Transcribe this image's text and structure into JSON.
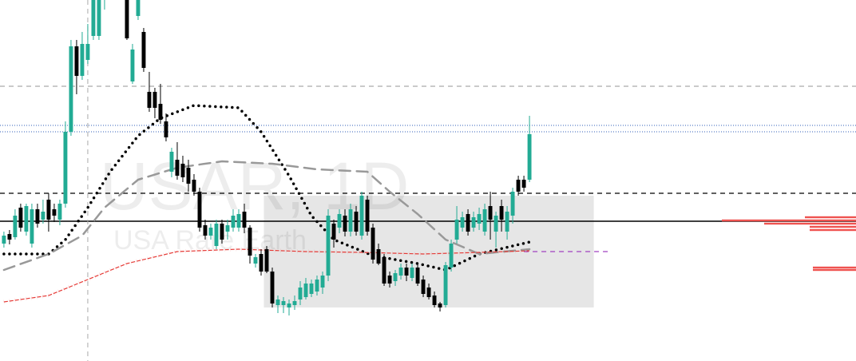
{
  "chart_data": {
    "type": "candlestick",
    "title": "USAR, 1D",
    "subtitle": "USA Rare Earth",
    "ylim": [
      0,
      452
    ],
    "xlim": [
      -0.7,
      152.4
    ],
    "up_color": "#22ab94",
    "down_color": "#000000",
    "ohlc": [
      [
        147,
        162,
        142,
        157
      ],
      [
        159,
        164,
        146,
        152
      ],
      [
        155,
        190,
        152,
        182
      ],
      [
        192,
        197,
        162,
        167
      ],
      [
        162,
        197,
        157,
        194
      ],
      [
        147,
        197,
        142,
        190
      ],
      [
        190,
        197,
        167,
        172
      ],
      [
        177,
        202,
        172,
        187
      ],
      [
        202,
        210,
        162,
        177
      ],
      [
        190,
        197,
        174,
        182
      ],
      [
        177,
        202,
        170,
        197
      ],
      [
        197,
        300,
        192,
        287
      ],
      [
        287,
        402,
        282,
        394
      ],
      [
        394,
        402,
        334,
        357
      ],
      [
        357,
        412,
        352,
        397
      ],
      [
        377,
        422,
        372,
        397
      ],
      [
        407,
        480,
        402,
        470
      ],
      [
        407,
        480,
        402,
        465
      ],
      [
        460,
        500,
        440,
        490
      ],
      [
        490,
        510,
        470,
        480
      ],
      [
        480,
        500,
        455,
        470
      ],
      [
        470,
        490,
        455,
        465
      ],
      [
        470,
        480,
        402,
        404
      ],
      [
        350,
        397,
        347,
        390
      ],
      [
        432,
        480,
        427,
        470
      ],
      [
        412,
        417,
        362,
        367
      ],
      [
        337,
        362,
        312,
        317
      ],
      [
        337,
        342,
        304,
        317
      ],
      [
        322,
        347,
        297,
        302
      ],
      [
        300,
        310,
        275,
        280
      ],
      [
        237,
        267,
        230,
        262
      ],
      [
        252,
        274,
        227,
        232
      ],
      [
        247,
        257,
        224,
        230
      ],
      [
        242,
        252,
        212,
        222
      ],
      [
        227,
        234,
        207,
        212
      ],
      [
        212,
        217,
        162,
        167
      ],
      [
        170,
        177,
        152,
        157
      ],
      [
        157,
        172,
        152,
        167
      ],
      [
        144,
        177,
        140,
        172
      ],
      [
        172,
        177,
        147,
        152
      ],
      [
        162,
        177,
        152,
        170
      ],
      [
        167,
        190,
        162,
        182
      ],
      [
        167,
        190,
        162,
        184
      ],
      [
        187,
        197,
        160,
        167
      ],
      [
        167,
        170,
        122,
        132
      ],
      [
        122,
        134,
        117,
        130
      ],
      [
        134,
        140,
        107,
        112
      ],
      [
        140,
        144,
        110,
        112
      ],
      [
        112,
        117,
        67,
        72
      ],
      [
        70,
        82,
        60,
        77
      ],
      [
        70,
        80,
        60,
        75
      ],
      [
        67,
        77,
        57,
        72
      ],
      [
        70,
        82,
        64,
        75
      ],
      [
        77,
        100,
        70,
        92
      ],
      [
        80,
        104,
        77,
        97
      ],
      [
        84,
        102,
        80,
        97
      ],
      [
        87,
        107,
        82,
        102
      ],
      [
        92,
        112,
        84,
        107
      ],
      [
        107,
        190,
        100,
        182
      ],
      [
        172,
        177,
        142,
        152
      ],
      [
        167,
        190,
        160,
        184
      ],
      [
        182,
        190,
        156,
        162
      ],
      [
        162,
        197,
        156,
        190
      ],
      [
        187,
        194,
        157,
        162
      ],
      [
        157,
        212,
        152,
        207
      ],
      [
        202,
        207,
        157,
        162
      ],
      [
        167,
        172,
        122,
        127
      ],
      [
        140,
        147,
        120,
        122
      ],
      [
        130,
        134,
        94,
        97
      ],
      [
        107,
        112,
        92,
        97
      ],
      [
        100,
        114,
        94,
        110
      ],
      [
        107,
        122,
        102,
        117
      ],
      [
        117,
        122,
        100,
        107
      ],
      [
        104,
        122,
        100,
        117
      ],
      [
        117,
        122,
        94,
        97
      ],
      [
        102,
        107,
        80,
        84
      ],
      [
        92,
        97,
        77,
        80
      ],
      [
        82,
        87,
        67,
        70
      ],
      [
        72,
        74,
        62,
        67
      ],
      [
        70,
        124,
        67,
        120
      ],
      [
        117,
        152,
        112,
        147
      ],
      [
        152,
        194,
        147,
        177
      ],
      [
        167,
        187,
        162,
        180
      ],
      [
        184,
        190,
        157,
        162
      ],
      [
        167,
        187,
        162,
        180
      ],
      [
        172,
        192,
        164,
        184
      ],
      [
        162,
        197,
        157,
        190
      ],
      [
        194,
        212,
        152,
        177
      ],
      [
        162,
        187,
        142,
        182
      ],
      [
        194,
        202,
        162,
        177
      ],
      [
        162,
        194,
        152,
        187
      ],
      [
        182,
        217,
        172,
        212
      ],
      [
        227,
        232,
        207,
        212
      ],
      [
        227,
        232,
        212,
        217
      ],
      [
        227,
        307,
        224,
        284
      ]
    ],
    "overlays": [
      {
        "style": "dotted",
        "color": "#000000",
        "x": [
          0,
          8,
          11,
          15,
          19,
          24,
          28,
          34,
          42,
          46,
          51,
          55,
          59,
          66,
          74,
          79,
          85,
          94
        ],
        "values": [
          134,
          134,
          152,
          192,
          237,
          282,
          304,
          320,
          317,
          287,
          232,
          182,
          152,
          132,
          122,
          114,
          134,
          149
        ]
      },
      {
        "style": "dashed",
        "color": "#999999",
        "x": [
          0,
          8,
          14,
          18,
          24,
          31,
          39,
          48,
          56,
          65,
          69,
          74,
          79,
          85,
          94
        ],
        "values": [
          114,
          134,
          157,
          192,
          227,
          242,
          250,
          247,
          240,
          237,
          212,
          184,
          152,
          134,
          140
        ]
      },
      {
        "style": "plus",
        "color": "#e53935",
        "x": [
          0,
          8,
          15,
          22,
          31,
          42,
          54,
          64,
          75,
          85,
          94
        ],
        "values": [
          74,
          82,
          102,
          122,
          137,
          140,
          137,
          136,
          134,
          136,
          138
        ]
      }
    ],
    "hlines": [
      {
        "value": 344,
        "style": "dashed",
        "color": "#aaaaaa"
      },
      {
        "value": 295,
        "style": "dotted",
        "color": "#5b7fc7"
      },
      {
        "value": 287,
        "style": "dotted",
        "color": "#5b7fc7"
      },
      {
        "value": 210,
        "style": "dashed",
        "color": "#000000"
      },
      {
        "value": 175,
        "style": "solid",
        "color": "#000000"
      },
      {
        "value": 137,
        "style": "dashed",
        "color": "#a040c0",
        "x": [
          93,
          108.6
        ]
      }
    ],
    "vline": {
      "x": 15,
      "style": "dashed",
      "color": "#aaaaaa"
    },
    "zone": {
      "x": [
        46.5,
        105.5
      ],
      "values": [
        67,
        207
      ],
      "color": "#e6e6e6"
    },
    "profile": {
      "color": "#ef5350",
      "levels": [
        180,
        176,
        172,
        168,
        164,
        117,
        114
      ],
      "values": [
        64,
        168,
        115,
        58,
        58,
        54,
        54
      ]
    }
  }
}
